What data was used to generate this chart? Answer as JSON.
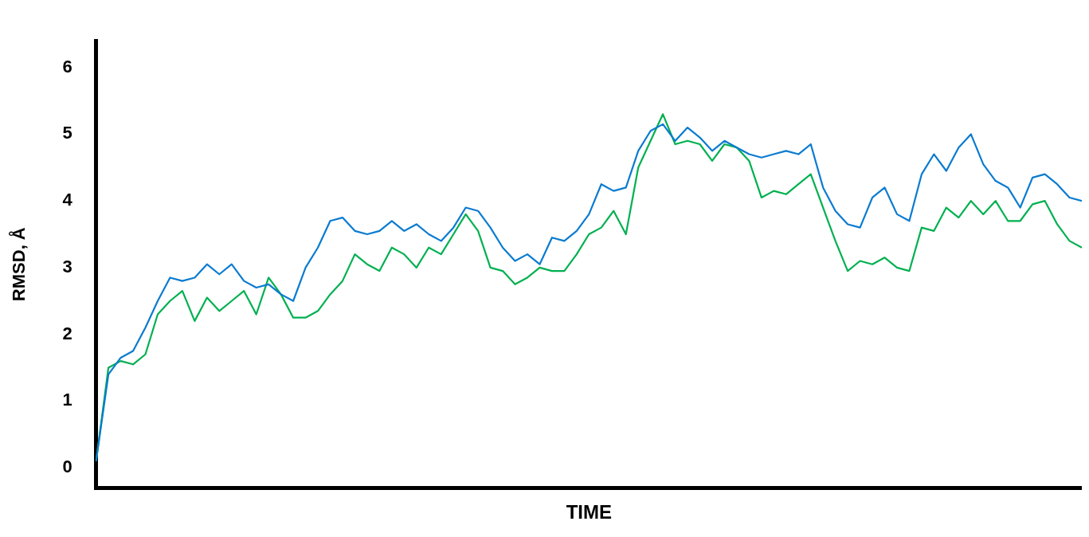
{
  "chart_data": {
    "type": "line",
    "xlabel": "TIME",
    "ylabel": "RMSD, Å",
    "categories": [
      null,
      null,
      null,
      null,
      null,
      null,
      null,
      null,
      null,
      null,
      null,
      null,
      null,
      null,
      null,
      null,
      null,
      null,
      null,
      null,
      null,
      null,
      null,
      null,
      null,
      null,
      null,
      null,
      null,
      null,
      null,
      null,
      null,
      null,
      null,
      null,
      null,
      null,
      null,
      null,
      null,
      null,
      null,
      null,
      null,
      null,
      null,
      null,
      null,
      null,
      null,
      null,
      null,
      null,
      null,
      null,
      null,
      null,
      null,
      null,
      null,
      null,
      null,
      null,
      null,
      null,
      null,
      null,
      null,
      null,
      null,
      null,
      null,
      null,
      null,
      null,
      null,
      null,
      null,
      null,
      null
    ],
    "series": [
      {
        "color": "#0a7bd0",
        "values": [
          0.1,
          1.4,
          1.65,
          1.75,
          2.1,
          2.5,
          2.85,
          2.8,
          2.85,
          3.05,
          2.9,
          3.05,
          2.8,
          2.7,
          2.75,
          2.6,
          2.5,
          3.0,
          3.3,
          3.7,
          3.75,
          3.55,
          3.5,
          3.55,
          3.7,
          3.55,
          3.65,
          3.5,
          3.4,
          3.6,
          3.9,
          3.85,
          3.6,
          3.3,
          3.1,
          3.2,
          3.05,
          3.45,
          3.4,
          3.55,
          3.8,
          4.25,
          4.15,
          4.2,
          4.75,
          5.05,
          5.15,
          4.9,
          5.1,
          4.95,
          4.75,
          4.9,
          4.8,
          4.7,
          4.65,
          4.7,
          4.75,
          4.7,
          4.85,
          4.2,
          3.85,
          3.65,
          3.6,
          4.05,
          4.2,
          3.8,
          3.7,
          4.4,
          4.7,
          4.45,
          4.8,
          5.0,
          4.55,
          4.3,
          4.2,
          3.9,
          4.35,
          4.4,
          4.25,
          4.05,
          4.0
        ]
      },
      {
        "color": "#00b050",
        "values": [
          0.1,
          1.5,
          1.6,
          1.55,
          1.7,
          2.3,
          2.5,
          2.65,
          2.2,
          2.55,
          2.35,
          2.5,
          2.65,
          2.3,
          2.85,
          2.6,
          2.25,
          2.25,
          2.35,
          2.6,
          2.8,
          3.2,
          3.05,
          2.95,
          3.3,
          3.2,
          3.0,
          3.3,
          3.2,
          3.5,
          3.8,
          3.55,
          3.0,
          2.95,
          2.75,
          2.85,
          3.0,
          2.95,
          2.95,
          3.2,
          3.5,
          3.6,
          3.85,
          3.5,
          4.5,
          4.9,
          5.3,
          4.85,
          4.9,
          4.85,
          4.6,
          4.85,
          4.8,
          4.6,
          4.05,
          4.15,
          4.1,
          4.25,
          4.4,
          3.9,
          3.4,
          2.95,
          3.1,
          3.05,
          3.15,
          3.0,
          2.95,
          3.6,
          3.55,
          3.9,
          3.75,
          4.0,
          3.8,
          4.0,
          3.7,
          3.7,
          3.95,
          4.0,
          3.65,
          3.4,
          3.3
        ]
      }
    ],
    "ylim": [
      -0.3,
      6.4
    ],
    "yticks": [
      0,
      1,
      2,
      3,
      4,
      5,
      6
    ],
    "grid": false,
    "legend": false,
    "marker": "none",
    "line_style": "solid",
    "tick_labels": "y"
  }
}
